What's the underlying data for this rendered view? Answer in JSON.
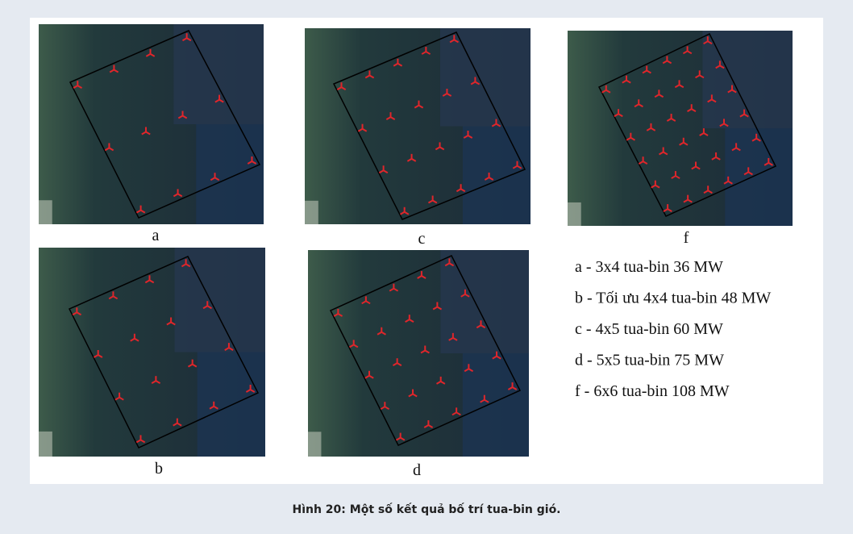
{
  "panels": [
    {
      "label": "a"
    },
    {
      "label": "c"
    },
    {
      "label": "f"
    },
    {
      "label": "b"
    },
    {
      "label": "d"
    }
  ],
  "legend": [
    "a - 3x4 tua-bin 36 MW",
    "b - Tối ưu 4x4 tua-bin 48 MW",
    "c - 4x5 tua-bin 60 MW",
    "d - 5x5 tua-bin 75 MW",
    "f - 6x6 tua-bin 108 MW"
  ],
  "caption": "Hình 20: Một số kết quả bố trí tua-bin gió."
}
